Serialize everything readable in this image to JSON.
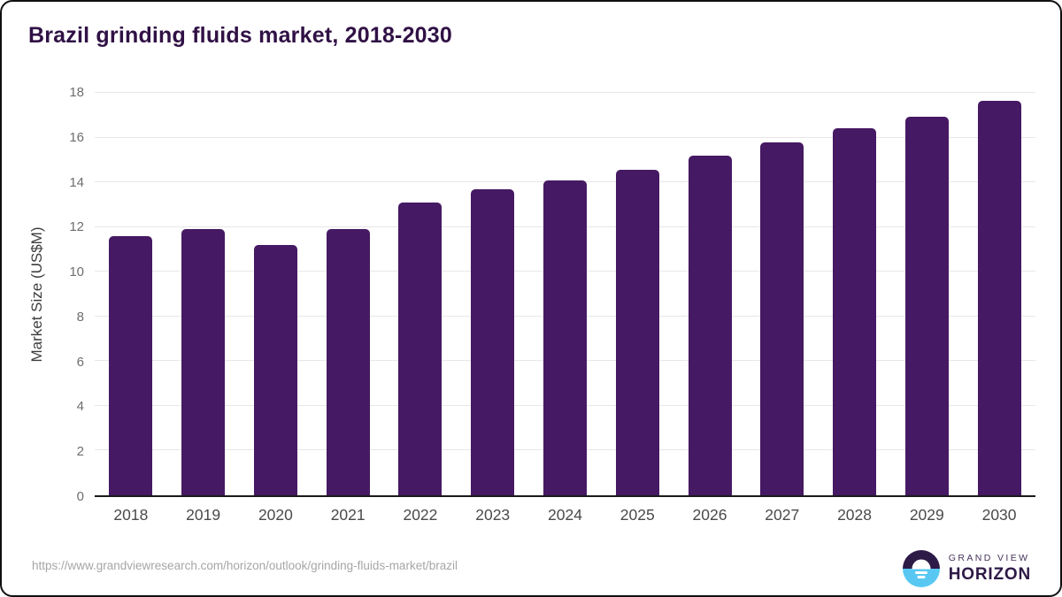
{
  "header": {
    "title": "Brazil grinding fluids market, 2018-2030"
  },
  "chart_data": {
    "type": "bar",
    "title": "Brazil grinding fluids market, 2018-2030",
    "categories": [
      "2018",
      "2019",
      "2020",
      "2021",
      "2022",
      "2023",
      "2024",
      "2025",
      "2026",
      "2027",
      "2028",
      "2029",
      "2030"
    ],
    "values": [
      11.6,
      11.9,
      11.2,
      11.9,
      13.1,
      13.7,
      14.1,
      14.55,
      15.2,
      15.8,
      16.4,
      16.95,
      17.65
    ],
    "xlabel": "",
    "ylabel": "Market Size (US$M)",
    "ylim": [
      0,
      18
    ],
    "ytick_step": 2,
    "ytick_labels": [
      "0",
      "2",
      "4",
      "6",
      "8",
      "10",
      "12",
      "14",
      "16",
      "18"
    ],
    "grid": true,
    "legend": "none",
    "bar_color": "#451963"
  },
  "footer": {
    "source_url": "https://www.grandviewresearch.com/horizon/outlook/grinding-fluids-market/brazil",
    "logo": {
      "brand_top": "GRAND VIEW",
      "brand_bottom": "HORIZON"
    }
  },
  "colors": {
    "bar": "#451963",
    "title_text": "#301145",
    "axis_line": "#1a1a1a",
    "gridline": "#e7e7e7",
    "tick_text": "#6e6e6e",
    "x_label_text": "#4a4a4a",
    "source_text": "#a6a6a6",
    "logo_dark": "#2e1a47",
    "logo_blue": "#58c8f3"
  }
}
